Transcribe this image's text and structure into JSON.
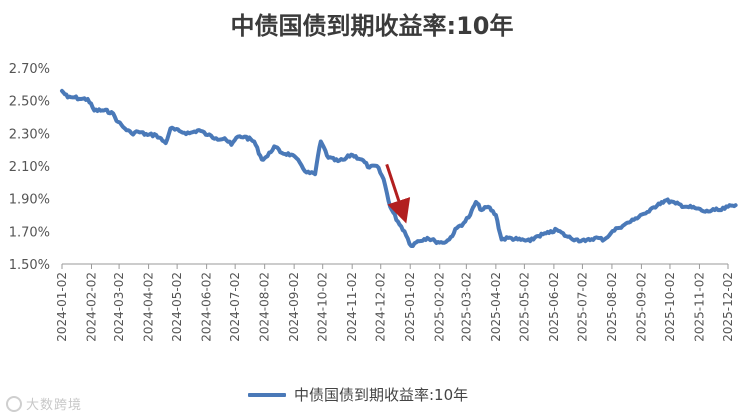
{
  "chart_data": {
    "type": "line",
    "title": "中债国债到期收益率:10年",
    "y_ticks": [
      "2.70%",
      "2.50%",
      "2.30%",
      "2.10%",
      "1.90%",
      "1.70%",
      "1.50%"
    ],
    "ylim": [
      1.5,
      2.7
    ],
    "grid": false,
    "legend_position": "bottom",
    "x_ticks": [
      "2024-01-02",
      "2024-02-02",
      "2024-03-02",
      "2024-04-02",
      "2024-05-02",
      "2024-06-02",
      "2024-07-02",
      "2024-08-02",
      "2024-09-02",
      "2024-10-02",
      "2024-11-02",
      "2024-12-02",
      "2025-01-02",
      "2025-02-02",
      "2025-03-02",
      "2025-04-02",
      "2025-05-02",
      "2025-06-02",
      "2025-07-02",
      "2025-08-02",
      "2025-09-02",
      "2025-10-02",
      "2025-11-02",
      "2025-12-02"
    ],
    "series": [
      {
        "name": "中债国债到期收益率:10年",
        "color": "#4a79b8",
        "points": [
          [
            "2024-01-02",
            2.56
          ],
          [
            "2024-01-08",
            2.52
          ],
          [
            "2024-01-15",
            2.52
          ],
          [
            "2024-01-22",
            2.51
          ],
          [
            "2024-01-29",
            2.51
          ],
          [
            "2024-02-05",
            2.44
          ],
          [
            "2024-02-15",
            2.44
          ],
          [
            "2024-02-23",
            2.43
          ],
          [
            "2024-03-01",
            2.37
          ],
          [
            "2024-03-08",
            2.33
          ],
          [
            "2024-03-15",
            2.3
          ],
          [
            "2024-03-22",
            2.31
          ],
          [
            "2024-04-01",
            2.29
          ],
          [
            "2024-04-10",
            2.29
          ],
          [
            "2024-04-20",
            2.24
          ],
          [
            "2024-04-25",
            2.33
          ],
          [
            "2024-05-06",
            2.31
          ],
          [
            "2024-05-15",
            2.3
          ],
          [
            "2024-05-25",
            2.32
          ],
          [
            "2024-06-03",
            2.29
          ],
          [
            "2024-06-12",
            2.27
          ],
          [
            "2024-06-21",
            2.27
          ],
          [
            "2024-06-28",
            2.23
          ],
          [
            "2024-07-05",
            2.28
          ],
          [
            "2024-07-12",
            2.28
          ],
          [
            "2024-07-22",
            2.25
          ],
          [
            "2024-07-30",
            2.14
          ],
          [
            "2024-08-05",
            2.16
          ],
          [
            "2024-08-12",
            2.22
          ],
          [
            "2024-08-20",
            2.18
          ],
          [
            "2024-08-30",
            2.17
          ],
          [
            "2024-09-08",
            2.12
          ],
          [
            "2024-09-15",
            2.06
          ],
          [
            "2024-09-24",
            2.05
          ],
          [
            "2024-09-27",
            2.16
          ],
          [
            "2024-09-30",
            2.25
          ],
          [
            "2024-10-08",
            2.15
          ],
          [
            "2024-10-18",
            2.13
          ],
          [
            "2024-10-25",
            2.14
          ],
          [
            "2024-11-01",
            2.17
          ],
          [
            "2024-11-12",
            2.14
          ],
          [
            "2024-11-20",
            2.09
          ],
          [
            "2024-11-28",
            2.1
          ],
          [
            "2024-12-05",
            2.02
          ],
          [
            "2024-12-12",
            1.85
          ],
          [
            "2024-12-20",
            1.76
          ],
          [
            "2024-12-27",
            1.7
          ],
          [
            "2025-01-03",
            1.61
          ],
          [
            "2025-01-10",
            1.64
          ],
          [
            "2025-01-20",
            1.66
          ],
          [
            "2025-01-28",
            1.64
          ],
          [
            "2025-02-05",
            1.63
          ],
          [
            "2025-02-12",
            1.65
          ],
          [
            "2025-02-20",
            1.72
          ],
          [
            "2025-02-27",
            1.75
          ],
          [
            "2025-03-06",
            1.8
          ],
          [
            "2025-03-12",
            1.88
          ],
          [
            "2025-03-18",
            1.83
          ],
          [
            "2025-03-25",
            1.85
          ],
          [
            "2025-04-02",
            1.8
          ],
          [
            "2025-04-08",
            1.65
          ],
          [
            "2025-04-15",
            1.66
          ],
          [
            "2025-04-25",
            1.65
          ],
          [
            "2025-05-08",
            1.64
          ],
          [
            "2025-05-15",
            1.67
          ],
          [
            "2025-05-28",
            1.69
          ],
          [
            "2025-06-05",
            1.71
          ],
          [
            "2025-06-15",
            1.67
          ],
          [
            "2025-06-25",
            1.65
          ],
          [
            "2025-07-05",
            1.64
          ],
          [
            "2025-07-15",
            1.66
          ],
          [
            "2025-07-25",
            1.65
          ],
          [
            "2025-08-01",
            1.69
          ],
          [
            "2025-08-08",
            1.72
          ],
          [
            "2025-08-15",
            1.74
          ],
          [
            "2025-08-25",
            1.77
          ],
          [
            "2025-09-01",
            1.8
          ],
          [
            "2025-09-10",
            1.82
          ],
          [
            "2025-09-20",
            1.87
          ],
          [
            "2025-09-28",
            1.89
          ],
          [
            "2025-10-08",
            1.87
          ],
          [
            "2025-10-20",
            1.85
          ],
          [
            "2025-10-30",
            1.84
          ],
          [
            "2025-11-08",
            1.82
          ],
          [
            "2025-11-18",
            1.83
          ],
          [
            "2025-11-25",
            1.83
          ],
          [
            "2025-12-02",
            1.85
          ],
          [
            "2025-12-10",
            1.86
          ]
        ]
      }
    ],
    "annotation": {
      "type": "arrow",
      "color": "#b21f1f",
      "from": [
        "2024-12-02",
        2.11
      ],
      "to": [
        "2024-12-28",
        1.8
      ]
    }
  }
}
